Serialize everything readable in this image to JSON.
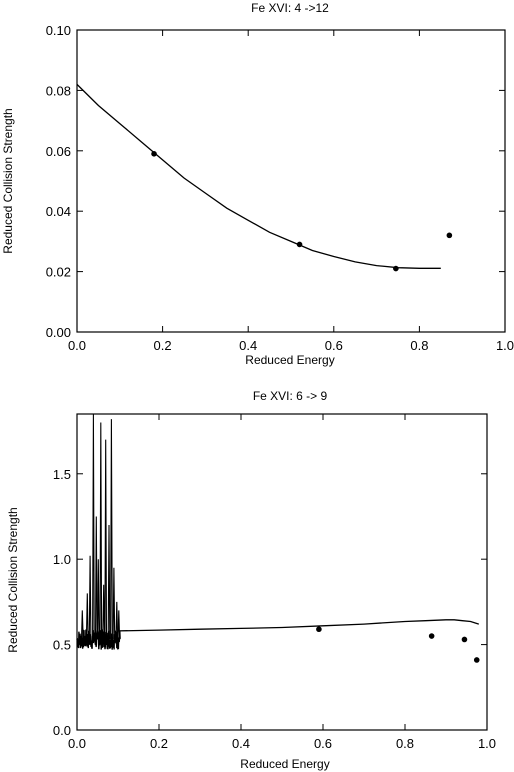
{
  "chart_data": [
    {
      "type": "line",
      "title": "Fe XVI: 4 ->12",
      "xlabel": "Reduced Energy",
      "ylabel": "Reduced Collision Strength",
      "xlim": [
        0.0,
        1.0
      ],
      "ylim": [
        0.0,
        0.1
      ],
      "xticks": [
        "0.0",
        "0.2",
        "0.4",
        "0.6",
        "0.8",
        "1.0"
      ],
      "xtick_values": [
        0.0,
        0.2,
        0.4,
        0.6,
        0.8,
        1.0
      ],
      "yticks": [
        "0.00",
        "0.02",
        "0.04",
        "0.06",
        "0.08",
        "0.10"
      ],
      "ytick_values": [
        0.0,
        0.02,
        0.04,
        0.06,
        0.08,
        0.1
      ],
      "series": [
        {
          "kind": "line",
          "x": [
            0.0,
            0.05,
            0.1,
            0.15,
            0.2,
            0.25,
            0.3,
            0.35,
            0.4,
            0.45,
            0.5,
            0.55,
            0.6,
            0.65,
            0.7,
            0.75,
            0.8,
            0.85
          ],
          "y": [
            0.082,
            0.075,
            0.069,
            0.063,
            0.057,
            0.051,
            0.046,
            0.041,
            0.037,
            0.033,
            0.03,
            0.027,
            0.025,
            0.0232,
            0.022,
            0.0213,
            0.0211,
            0.0211
          ]
        },
        {
          "kind": "points",
          "x": [
            0.18,
            0.52,
            0.745,
            0.87
          ],
          "y": [
            0.059,
            0.029,
            0.021,
            0.032
          ]
        }
      ],
      "grid": false
    },
    {
      "type": "line",
      "title": "Fe XVI: 6 -> 9",
      "xlabel": "Reduced Energy",
      "ylabel": "Reduced Collision Strength",
      "xlim": [
        0.0,
        1.0
      ],
      "ylim": [
        0.0,
        1.85
      ],
      "xticks": [
        "0.0",
        "0.2",
        "0.4",
        "0.6",
        "0.8",
        "1.0"
      ],
      "xtick_values": [
        0.0,
        0.2,
        0.4,
        0.6,
        0.8,
        1.0
      ],
      "yticks": [
        "0.0",
        "0.5",
        "1.0",
        "1.5"
      ],
      "ytick_values": [
        0.0,
        0.5,
        1.0,
        1.5
      ],
      "series": [
        {
          "kind": "line",
          "x": [
            0.1,
            0.2,
            0.3,
            0.4,
            0.5,
            0.6,
            0.7,
            0.8,
            0.85,
            0.9,
            0.92,
            0.94,
            0.96,
            0.98
          ],
          "y": [
            0.58,
            0.585,
            0.59,
            0.595,
            0.6,
            0.61,
            0.62,
            0.635,
            0.64,
            0.645,
            0.645,
            0.64,
            0.635,
            0.62
          ]
        },
        {
          "kind": "resonance",
          "x_range": [
            0.0,
            0.105
          ],
          "base": 0.53,
          "peaks": [
            {
              "x": 0.013,
              "y": 0.7
            },
            {
              "x": 0.025,
              "y": 0.8
            },
            {
              "x": 0.032,
              "y": 1.02
            },
            {
              "x": 0.04,
              "y": 1.85
            },
            {
              "x": 0.047,
              "y": 1.25
            },
            {
              "x": 0.052,
              "y": 1.0
            },
            {
              "x": 0.058,
              "y": 1.8
            },
            {
              "x": 0.065,
              "y": 0.85
            },
            {
              "x": 0.07,
              "y": 1.7
            },
            {
              "x": 0.078,
              "y": 1.2
            },
            {
              "x": 0.084,
              "y": 1.82
            },
            {
              "x": 0.09,
              "y": 0.95
            },
            {
              "x": 0.097,
              "y": 0.75
            },
            {
              "x": 0.102,
              "y": 0.7
            }
          ]
        },
        {
          "kind": "points",
          "x": [
            0.59,
            0.865,
            0.945,
            0.975
          ],
          "y": [
            0.59,
            0.55,
            0.53,
            0.41
          ]
        }
      ],
      "grid": false
    }
  ]
}
